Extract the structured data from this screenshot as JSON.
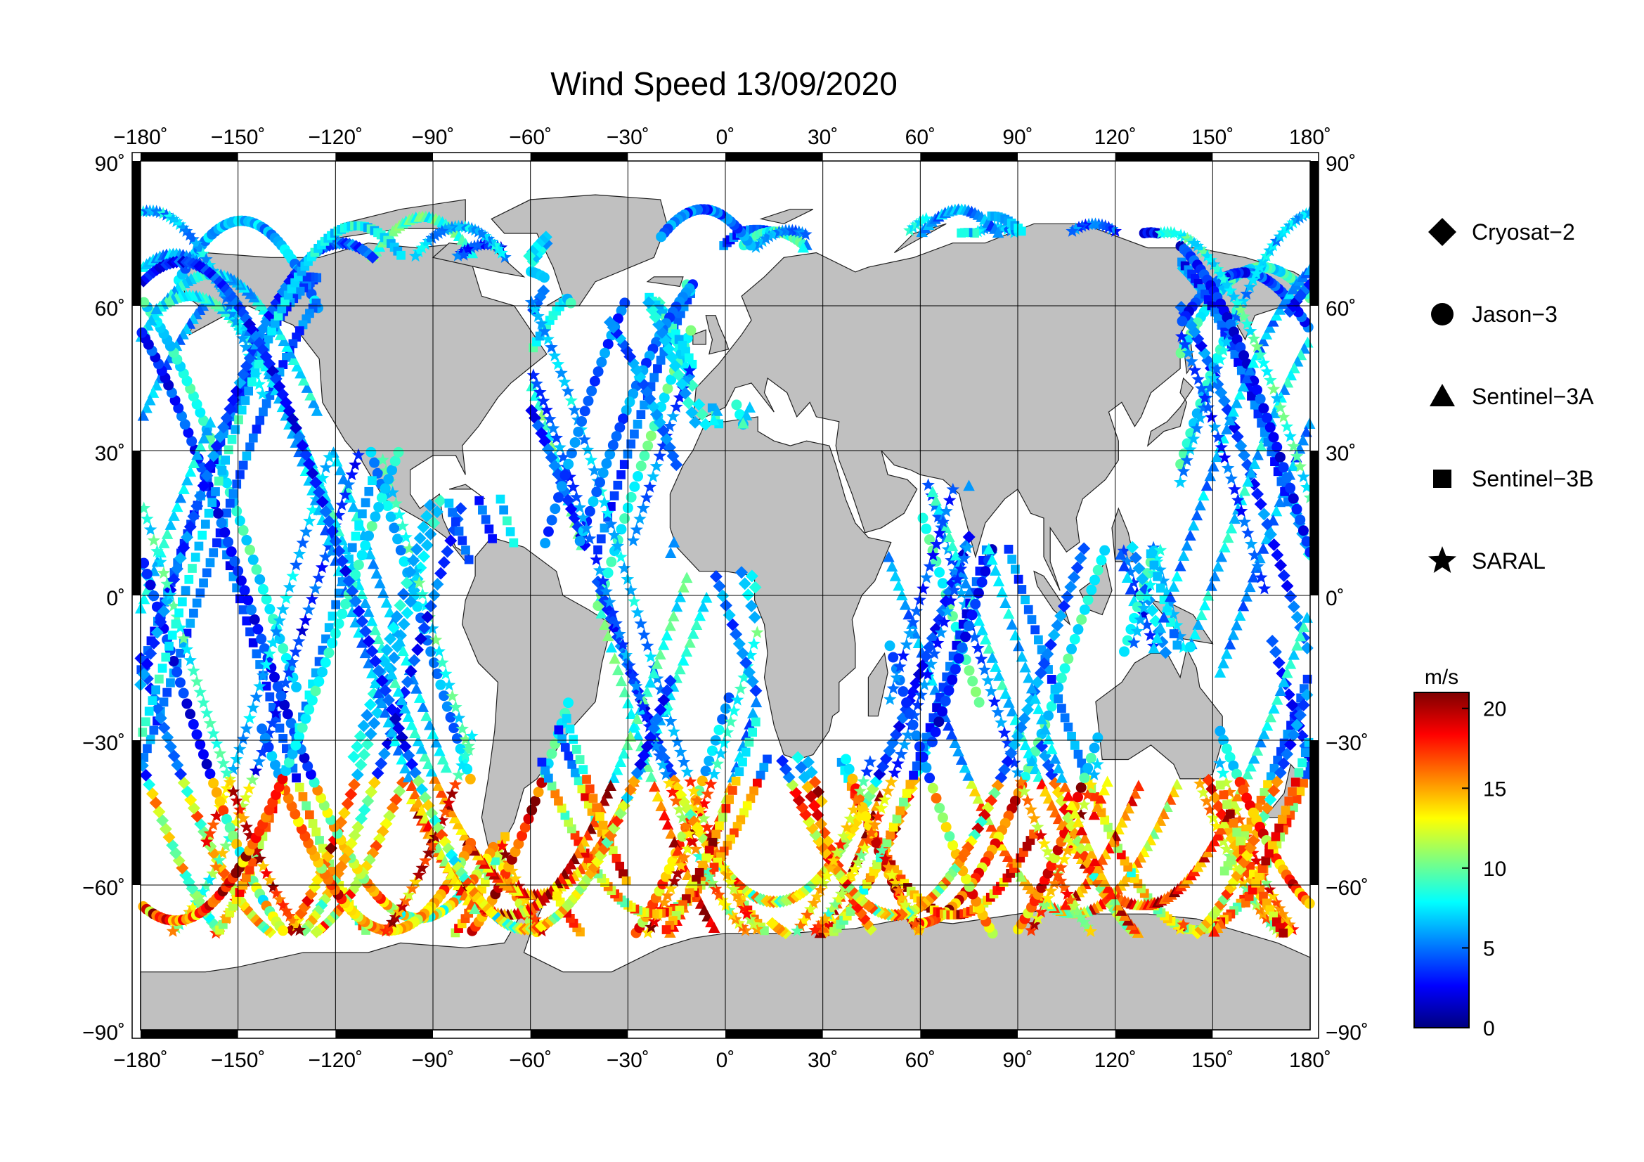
{
  "title": "Wind Speed 13/09/2020",
  "colors": {
    "land": "#c0c0c0",
    "ocean": "#ffffff",
    "grid": "#000000",
    "frame_dark": "#000000"
  },
  "axes": {
    "lon_ticks": [
      "−180˚",
      "−150˚",
      "−120˚",
      "−90˚",
      "−60˚",
      "−30˚",
      "0˚",
      "30˚",
      "60˚",
      "90˚",
      "120˚",
      "150˚",
      "180˚"
    ],
    "lat_ticks_left": [
      "90˚",
      "60˚",
      "30˚",
      "0˚",
      "−30˚",
      "−60˚",
      "−90˚"
    ],
    "lat_ticks_right": [
      "90˚",
      "60˚",
      "30˚",
      "0˚",
      "−30˚",
      "−60˚",
      "−90˚"
    ]
  },
  "legend": {
    "items": [
      {
        "label": "Cryosat−2",
        "symbol": "diamond-icon"
      },
      {
        "label": "Jason−3",
        "symbol": "circle-icon"
      },
      {
        "label": "Sentinel−3A",
        "symbol": "triangle-icon"
      },
      {
        "label": "Sentinel−3B",
        "symbol": "square-icon"
      },
      {
        "label": "SARAL",
        "symbol": "star-icon"
      }
    ]
  },
  "colorbar": {
    "unit": "m/s",
    "ticks": [
      "20",
      "15",
      "10",
      "5",
      "0"
    ],
    "min": 0,
    "max": 21,
    "colors": [
      "#7f0000",
      "#ff0000",
      "#ff7f00",
      "#ffff00",
      "#7fff7f",
      "#00ffff",
      "#007fff",
      "#0000ff",
      "#00007f"
    ]
  },
  "chart_data": {
    "type": "map",
    "lon_range": [
      -180,
      180
    ],
    "lat_range": [
      -90,
      90
    ],
    "projection": "equirectangular",
    "value_unit": "m/s",
    "series": [
      {
        "name": "Cryosat−2",
        "marker": "diamond"
      },
      {
        "name": "Jason−3",
        "marker": "circle"
      },
      {
        "name": "Sentinel−3A",
        "marker": "triangle"
      },
      {
        "name": "Sentinel−3B",
        "marker": "square"
      },
      {
        "name": "SARAL",
        "marker": "star"
      }
    ]
  }
}
